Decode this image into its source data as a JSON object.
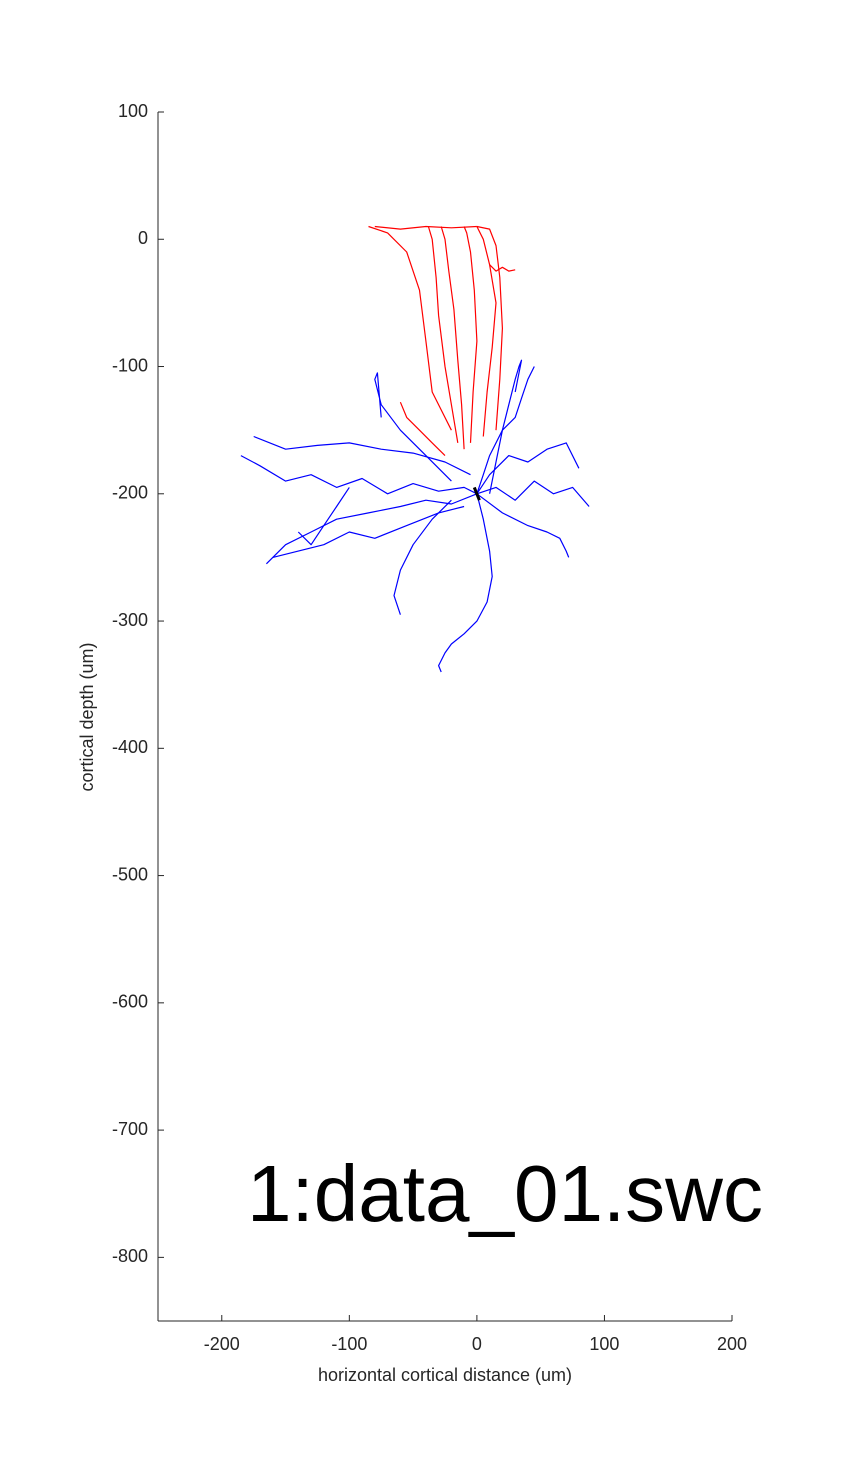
{
  "chart_data": {
    "type": "line",
    "xlabel": "horizontal cortical distance (um)",
    "ylabel": "cortical depth (um)",
    "annotation": "1:data_01.swc",
    "xlim": [
      -250,
      200
    ],
    "xticks": [
      -200,
      -100,
      0,
      100,
      200
    ],
    "ylim": [
      -850,
      100
    ],
    "yticks": [
      100,
      0,
      -100,
      -200,
      -300,
      -400,
      -500,
      -600,
      -700,
      -800
    ],
    "series": [
      {
        "color": "#ff0000",
        "x": [
          -15,
          -20,
          -25,
          -30,
          -32,
          -35,
          -38
        ],
        "values": [
          -160,
          -130,
          -100,
          -60,
          -30,
          0,
          10
        ]
      },
      {
        "color": "#ff0000",
        "x": [
          -10,
          -12,
          -15,
          -18,
          -22,
          -25,
          -28
        ],
        "values": [
          -165,
          -130,
          -95,
          -55,
          -25,
          0,
          10
        ]
      },
      {
        "color": "#ff0000",
        "x": [
          -5,
          -3,
          0,
          -2,
          -5,
          -8,
          -10
        ],
        "values": [
          -160,
          -120,
          -80,
          -40,
          -10,
          5,
          10
        ]
      },
      {
        "color": "#ff0000",
        "x": [
          5,
          8,
          12,
          15,
          10,
          5,
          0
        ],
        "values": [
          -155,
          -120,
          -85,
          -50,
          -20,
          0,
          10
        ]
      },
      {
        "color": "#ff0000",
        "x": [
          -20,
          -35,
          -40,
          -45,
          -55,
          -70,
          -85
        ],
        "values": [
          -150,
          -120,
          -80,
          -40,
          -10,
          5,
          10
        ]
      },
      {
        "color": "#ff0000",
        "x": [
          15,
          18,
          20,
          18,
          15,
          10,
          0
        ],
        "values": [
          -150,
          -110,
          -70,
          -30,
          -5,
          8,
          10
        ]
      },
      {
        "color": "#ff0000",
        "x": [
          10,
          15,
          20,
          25,
          30
        ],
        "values": [
          -20,
          -25,
          -22,
          -25,
          -24
        ]
      },
      {
        "color": "#ff0000",
        "x": [
          -60,
          -55,
          -45,
          -35,
          -25
        ],
        "values": [
          -128,
          -140,
          -150,
          -160,
          -170
        ]
      },
      {
        "color": "#ff0000",
        "x": [
          -80,
          -60,
          -40,
          -20,
          0
        ],
        "values": [
          10,
          8,
          10,
          9,
          10
        ]
      },
      {
        "color": "#0000ff",
        "x": [
          -185,
          -170,
          -150,
          -130,
          -110,
          -90,
          -70,
          -50,
          -30,
          -10,
          0
        ],
        "values": [
          -170,
          -178,
          -190,
          -185,
          -195,
          -188,
          -200,
          -192,
          -198,
          -195,
          -200
        ]
      },
      {
        "color": "#0000ff",
        "x": [
          -165,
          -150,
          -130,
          -110,
          -85,
          -60,
          -40,
          -20,
          0
        ],
        "values": [
          -255,
          -240,
          -230,
          -220,
          -215,
          -210,
          -205,
          -208,
          -200
        ]
      },
      {
        "color": "#0000ff",
        "x": [
          0,
          15,
          30,
          45,
          60,
          75,
          88
        ],
        "values": [
          -200,
          -195,
          -205,
          -190,
          -200,
          -195,
          -210
        ]
      },
      {
        "color": "#0000ff",
        "x": [
          0,
          10,
          25,
          40,
          55,
          70,
          80
        ],
        "values": [
          -200,
          -185,
          -170,
          -175,
          -165,
          -160,
          -180
        ]
      },
      {
        "color": "#0000ff",
        "x": [
          0,
          5,
          10,
          20,
          25,
          30,
          33,
          35,
          30
        ],
        "values": [
          -200,
          -185,
          -170,
          -150,
          -130,
          -110,
          -100,
          -95,
          -120
        ]
      },
      {
        "color": "#0000ff",
        "x": [
          0,
          5,
          10,
          12,
          8,
          0,
          -10,
          -20,
          -25,
          -30,
          -28
        ],
        "values": [
          -200,
          -220,
          -245,
          -265,
          -285,
          -300,
          -310,
          -318,
          -325,
          -335,
          -340
        ]
      },
      {
        "color": "#0000ff",
        "x": [
          -20,
          -35,
          -50,
          -60,
          -65,
          -60
        ],
        "values": [
          -205,
          -220,
          -240,
          -260,
          -280,
          -295
        ]
      },
      {
        "color": "#0000ff",
        "x": [
          -20,
          -40,
          -60,
          -75,
          -80,
          -78,
          -75
        ],
        "values": [
          -190,
          -170,
          -150,
          -130,
          -110,
          -105,
          -140
        ]
      },
      {
        "color": "#0000ff",
        "x": [
          -10,
          -30,
          -55,
          -80,
          -100,
          -120,
          -140,
          -160
        ],
        "values": [
          -210,
          -215,
          -225,
          -235,
          -230,
          -240,
          -245,
          -250
        ]
      },
      {
        "color": "#0000ff",
        "x": [
          0,
          20,
          40,
          55,
          65,
          70,
          72
        ],
        "values": [
          -200,
          -215,
          -225,
          -230,
          -235,
          -245,
          -250
        ]
      },
      {
        "color": "#0000ff",
        "x": [
          -5,
          -25,
          -50,
          -75,
          -100,
          -125,
          -150,
          -175
        ],
        "values": [
          -185,
          -175,
          -168,
          -165,
          -160,
          -162,
          -165,
          -155
        ]
      },
      {
        "color": "#0000ff",
        "x": [
          10,
          20,
          30,
          35,
          40,
          45
        ],
        "values": [
          -200,
          -150,
          -140,
          -125,
          -110,
          -100
        ]
      },
      {
        "color": "#0000ff",
        "x": [
          -100,
          -110,
          -120,
          -130,
          -140
        ],
        "values": [
          -195,
          -210,
          -225,
          -240,
          -230
        ]
      },
      {
        "color": "#000000",
        "x": [
          -2,
          2
        ],
        "values": [
          -195,
          -205
        ]
      }
    ]
  }
}
